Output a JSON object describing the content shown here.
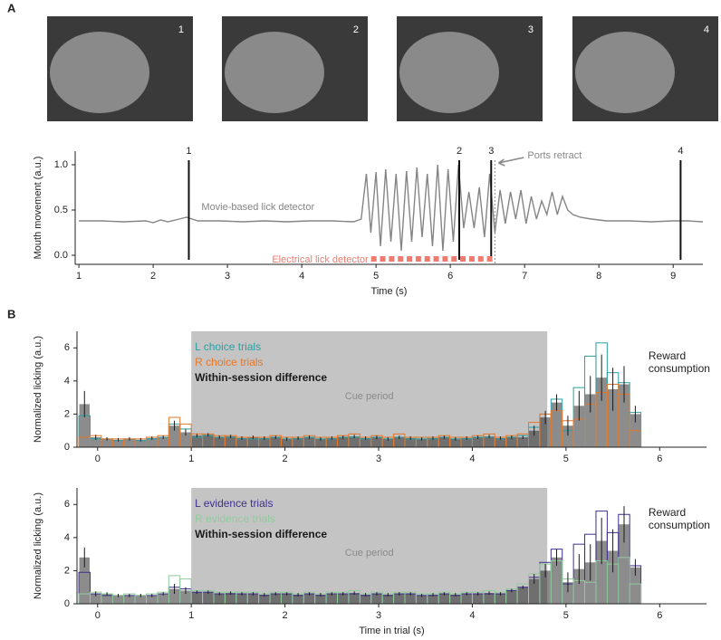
{
  "panel_labels": [
    "A",
    "B"
  ],
  "frames": [
    "1",
    "2",
    "3",
    "4"
  ],
  "chart_data": [
    {
      "type": "line",
      "xlabel": "Time (s)",
      "ylabel": "Mouth movement (a.u.)",
      "xlim": [
        0.95,
        9.4
      ],
      "ylim": [
        -0.1,
        1.15
      ],
      "xticks": [
        1,
        2,
        3,
        4,
        5,
        6,
        7,
        8,
        9
      ],
      "yticks": [
        {
          "value": 0,
          "label": "0.0"
        },
        {
          "value": 0.5,
          "label": "0.5"
        },
        {
          "value": 1,
          "label": "1.0"
        }
      ],
      "x": [
        1.0,
        1.3,
        1.6,
        1.9,
        2.0,
        2.1,
        2.2,
        2.35,
        2.45,
        2.6,
        2.9,
        3.2,
        3.5,
        3.8,
        4.1,
        4.4,
        4.7,
        4.8,
        4.87,
        4.93,
        5.0,
        5.06,
        5.13,
        5.2,
        5.27,
        5.34,
        5.41,
        5.48,
        5.55,
        5.62,
        5.69,
        5.76,
        5.83,
        5.9,
        5.97,
        6.04,
        6.11,
        6.18,
        6.25,
        6.32,
        6.39,
        6.46,
        6.53,
        6.6,
        6.67,
        6.74,
        6.81,
        6.88,
        6.95,
        7.02,
        7.09,
        7.16,
        7.23,
        7.3,
        7.37,
        7.44,
        7.51,
        7.58,
        7.65,
        7.75,
        7.9,
        8.1,
        8.4,
        8.7,
        9.0,
        9.2,
        9.4
      ],
      "series": [
        {
          "name": "Movie-based lick detector",
          "color": "#858585",
          "values": [
            0.38,
            0.38,
            0.37,
            0.38,
            0.36,
            0.39,
            0.37,
            0.4,
            0.42,
            0.38,
            0.38,
            0.37,
            0.38,
            0.37,
            0.38,
            0.38,
            0.37,
            0.4,
            0.9,
            0.25,
            0.92,
            0.1,
            0.95,
            0.15,
            0.9,
            0.05,
            0.93,
            0.15,
            0.97,
            0.2,
            0.9,
            0.1,
            1.0,
            0.05,
            0.95,
            0.15,
            1.0,
            0.3,
            0.7,
            0.3,
            0.75,
            0.2,
            0.9,
            0.25,
            0.72,
            0.35,
            0.7,
            0.4,
            0.72,
            0.35,
            0.65,
            0.4,
            0.6,
            0.45,
            0.7,
            0.45,
            0.65,
            0.5,
            0.45,
            0.42,
            0.4,
            0.38,
            0.38,
            0.37,
            0.38,
            0.38,
            0.37
          ]
        }
      ],
      "events": [
        {
          "x": 2.48,
          "label": "1"
        },
        {
          "x": 6.12,
          "label": "2"
        },
        {
          "x": 6.55,
          "label": "3"
        },
        {
          "x": 9.1,
          "label": "4"
        }
      ],
      "ports_retract": {
        "x": 6.6,
        "label": "Ports retract"
      },
      "lick_detector": {
        "name": "Electrical lick detector",
        "color": "#ef7b6f",
        "times": [
          4.97,
          5.09,
          5.21,
          5.33,
          5.45,
          5.57,
          5.69,
          5.81,
          5.93,
          6.05,
          6.17,
          6.29,
          6.41,
          6.53
        ]
      }
    },
    {
      "type": "bar",
      "ylabel": "Normalized licking (a.u.)",
      "xlim": [
        -0.22,
        6.5
      ],
      "ylim": [
        0,
        7
      ],
      "xticks": [
        0,
        1,
        2,
        3,
        4,
        5,
        6
      ],
      "yticks": [
        0,
        2,
        4,
        6
      ],
      "x": [
        -0.14,
        -0.02,
        0.1,
        0.22,
        0.34,
        0.46,
        0.58,
        0.7,
        0.82,
        0.94,
        1.06,
        1.18,
        1.3,
        1.42,
        1.54,
        1.66,
        1.78,
        1.9,
        2.02,
        2.14,
        2.26,
        2.38,
        2.5,
        2.62,
        2.74,
        2.86,
        2.98,
        3.1,
        3.22,
        3.34,
        3.46,
        3.58,
        3.7,
        3.82,
        3.94,
        4.06,
        4.18,
        4.3,
        4.42,
        4.54,
        4.66,
        4.78,
        4.9,
        5.02,
        5.14,
        5.26,
        5.38,
        5.5,
        5.62,
        5.74
      ],
      "series": [
        {
          "name": "L choice trials",
          "color": "#2b9fa3",
          "values": [
            1.9,
            0.5,
            0.5,
            0.4,
            0.5,
            0.4,
            0.5,
            0.6,
            1.4,
            1.1,
            0.6,
            0.7,
            0.6,
            0.6,
            0.5,
            0.5,
            0.5,
            0.6,
            0.5,
            0.5,
            0.6,
            0.5,
            0.5,
            0.6,
            0.6,
            0.5,
            0.6,
            0.5,
            0.6,
            0.5,
            0.5,
            0.5,
            0.6,
            0.5,
            0.5,
            0.6,
            0.6,
            0.5,
            0.6,
            0.7,
            1.2,
            2.0,
            2.9,
            1.0,
            3.6,
            5.5,
            6.3,
            4.5,
            3.9,
            2.1
          ]
        },
        {
          "name": "R choice trials",
          "color": "#e5772b",
          "values": [
            0.6,
            0.7,
            0.5,
            0.5,
            0.5,
            0.5,
            0.6,
            0.7,
            1.8,
            1.4,
            0.8,
            0.8,
            0.7,
            0.7,
            0.6,
            0.6,
            0.6,
            0.7,
            0.6,
            0.6,
            0.7,
            0.6,
            0.6,
            0.7,
            0.8,
            0.6,
            0.7,
            0.6,
            0.8,
            0.6,
            0.6,
            0.6,
            0.7,
            0.6,
            0.6,
            0.7,
            0.8,
            0.6,
            0.7,
            0.8,
            1.5,
            2.0,
            2.2,
            1.6,
            1.7,
            2.6,
            3.3,
            3.8,
            3.2,
            1.0
          ]
        },
        {
          "name": "Within-session difference",
          "color": "#1a1a1a",
          "values": [
            2.6,
            0.6,
            0.5,
            0.45,
            0.5,
            0.45,
            0.55,
            0.6,
            1.3,
            0.9,
            0.7,
            0.75,
            0.6,
            0.65,
            0.55,
            0.6,
            0.55,
            0.6,
            0.5,
            0.55,
            0.6,
            0.5,
            0.55,
            0.6,
            0.65,
            0.55,
            0.6,
            0.5,
            0.6,
            0.55,
            0.5,
            0.55,
            0.6,
            0.5,
            0.55,
            0.6,
            0.65,
            0.55,
            0.6,
            0.6,
            1.0,
            1.8,
            2.7,
            1.3,
            2.5,
            3.2,
            4.2,
            3.5,
            3.8,
            2.0
          ],
          "errors": [
            0.8,
            0.15,
            0.1,
            0.1,
            0.1,
            0.1,
            0.1,
            0.1,
            0.3,
            0.2,
            0.1,
            0.1,
            0.1,
            0.1,
            0.1,
            0.1,
            0.1,
            0.1,
            0.1,
            0.1,
            0.1,
            0.1,
            0.1,
            0.1,
            0.1,
            0.1,
            0.1,
            0.1,
            0.1,
            0.1,
            0.1,
            0.1,
            0.1,
            0.1,
            0.1,
            0.1,
            0.1,
            0.1,
            0.1,
            0.1,
            0.3,
            0.4,
            0.5,
            0.6,
            0.9,
            1.1,
            1.4,
            1.3,
            1.1,
            0.5
          ]
        }
      ],
      "shaded_region": {
        "start": 1,
        "end": 4.8,
        "label": "Cue period"
      },
      "annotation": [
        "Reward",
        "consumption"
      ]
    },
    {
      "type": "bar",
      "xlabel": "Time in trial (s)",
      "ylabel": "Normalized licking (a.u.)",
      "xlim": [
        -0.22,
        6.5
      ],
      "ylim": [
        0,
        7
      ],
      "xticks": [
        0,
        1,
        2,
        3,
        4,
        5,
        6
      ],
      "yticks": [
        0,
        2,
        4,
        6
      ],
      "x": [
        -0.14,
        -0.02,
        0.1,
        0.22,
        0.34,
        0.46,
        0.58,
        0.7,
        0.82,
        0.94,
        1.06,
        1.18,
        1.3,
        1.42,
        1.54,
        1.66,
        1.78,
        1.9,
        2.02,
        2.14,
        2.26,
        2.38,
        2.5,
        2.62,
        2.74,
        2.86,
        2.98,
        3.1,
        3.22,
        3.34,
        3.46,
        3.58,
        3.7,
        3.82,
        3.94,
        4.06,
        4.18,
        4.3,
        4.42,
        4.54,
        4.66,
        4.78,
        4.9,
        5.02,
        5.14,
        5.26,
        5.38,
        5.5,
        5.62,
        5.74
      ],
      "series": [
        {
          "name": "L evidence trials",
          "color": "#3d2f8e",
          "values": [
            1.9,
            0.6,
            0.5,
            0.5,
            0.5,
            0.5,
            0.5,
            0.6,
            1.0,
            0.9,
            0.7,
            0.7,
            0.6,
            0.6,
            0.6,
            0.6,
            0.5,
            0.6,
            0.6,
            0.5,
            0.6,
            0.5,
            0.6,
            0.6,
            0.6,
            0.5,
            0.6,
            0.5,
            0.6,
            0.6,
            0.5,
            0.5,
            0.6,
            0.5,
            0.6,
            0.6,
            0.6,
            0.6,
            0.8,
            1.0,
            1.6,
            2.5,
            3.3,
            1.2,
            3.6,
            4.2,
            5.6,
            4.3,
            5.4,
            2.3
          ]
        },
        {
          "name": "R evidence trials",
          "color": "#8fcc9b",
          "values": [
            0.6,
            0.7,
            0.6,
            0.5,
            0.6,
            0.5,
            0.6,
            0.7,
            1.7,
            1.5,
            0.8,
            0.8,
            0.7,
            0.7,
            0.7,
            0.7,
            0.6,
            0.7,
            0.7,
            0.6,
            0.7,
            0.6,
            0.7,
            0.7,
            0.8,
            0.6,
            0.7,
            0.6,
            0.7,
            0.7,
            0.6,
            0.6,
            0.7,
            0.6,
            0.7,
            0.7,
            0.8,
            0.7,
            0.9,
            1.2,
            1.8,
            2.4,
            2.6,
            1.5,
            1.4,
            1.3,
            2.6,
            2.4,
            2.8,
            1.2
          ]
        },
        {
          "name": "Within-session difference",
          "color": "#1a1a1a",
          "values": [
            2.8,
            0.6,
            0.6,
            0.5,
            0.5,
            0.5,
            0.5,
            0.6,
            0.9,
            0.8,
            0.7,
            0.7,
            0.6,
            0.65,
            0.6,
            0.6,
            0.55,
            0.6,
            0.6,
            0.55,
            0.6,
            0.55,
            0.6,
            0.6,
            0.65,
            0.55,
            0.6,
            0.55,
            0.6,
            0.6,
            0.5,
            0.55,
            0.6,
            0.55,
            0.6,
            0.6,
            0.65,
            0.6,
            0.8,
            1.0,
            1.5,
            2.0,
            2.8,
            1.3,
            2.1,
            2.5,
            3.8,
            3.2,
            4.8,
            2.2
          ],
          "errors": [
            0.6,
            0.15,
            0.1,
            0.1,
            0.1,
            0.1,
            0.1,
            0.1,
            0.3,
            0.2,
            0.1,
            0.1,
            0.1,
            0.1,
            0.1,
            0.1,
            0.1,
            0.1,
            0.1,
            0.1,
            0.1,
            0.1,
            0.1,
            0.1,
            0.1,
            0.1,
            0.1,
            0.1,
            0.1,
            0.1,
            0.1,
            0.1,
            0.1,
            0.1,
            0.1,
            0.1,
            0.1,
            0.1,
            0.1,
            0.1,
            0.3,
            0.4,
            0.5,
            0.6,
            0.9,
            1.1,
            1.4,
            1.3,
            1.1,
            0.5
          ]
        }
      ],
      "shaded_region": {
        "start": 1,
        "end": 4.8,
        "label": "Cue period"
      },
      "annotation": [
        "Reward",
        "consumption"
      ]
    }
  ]
}
